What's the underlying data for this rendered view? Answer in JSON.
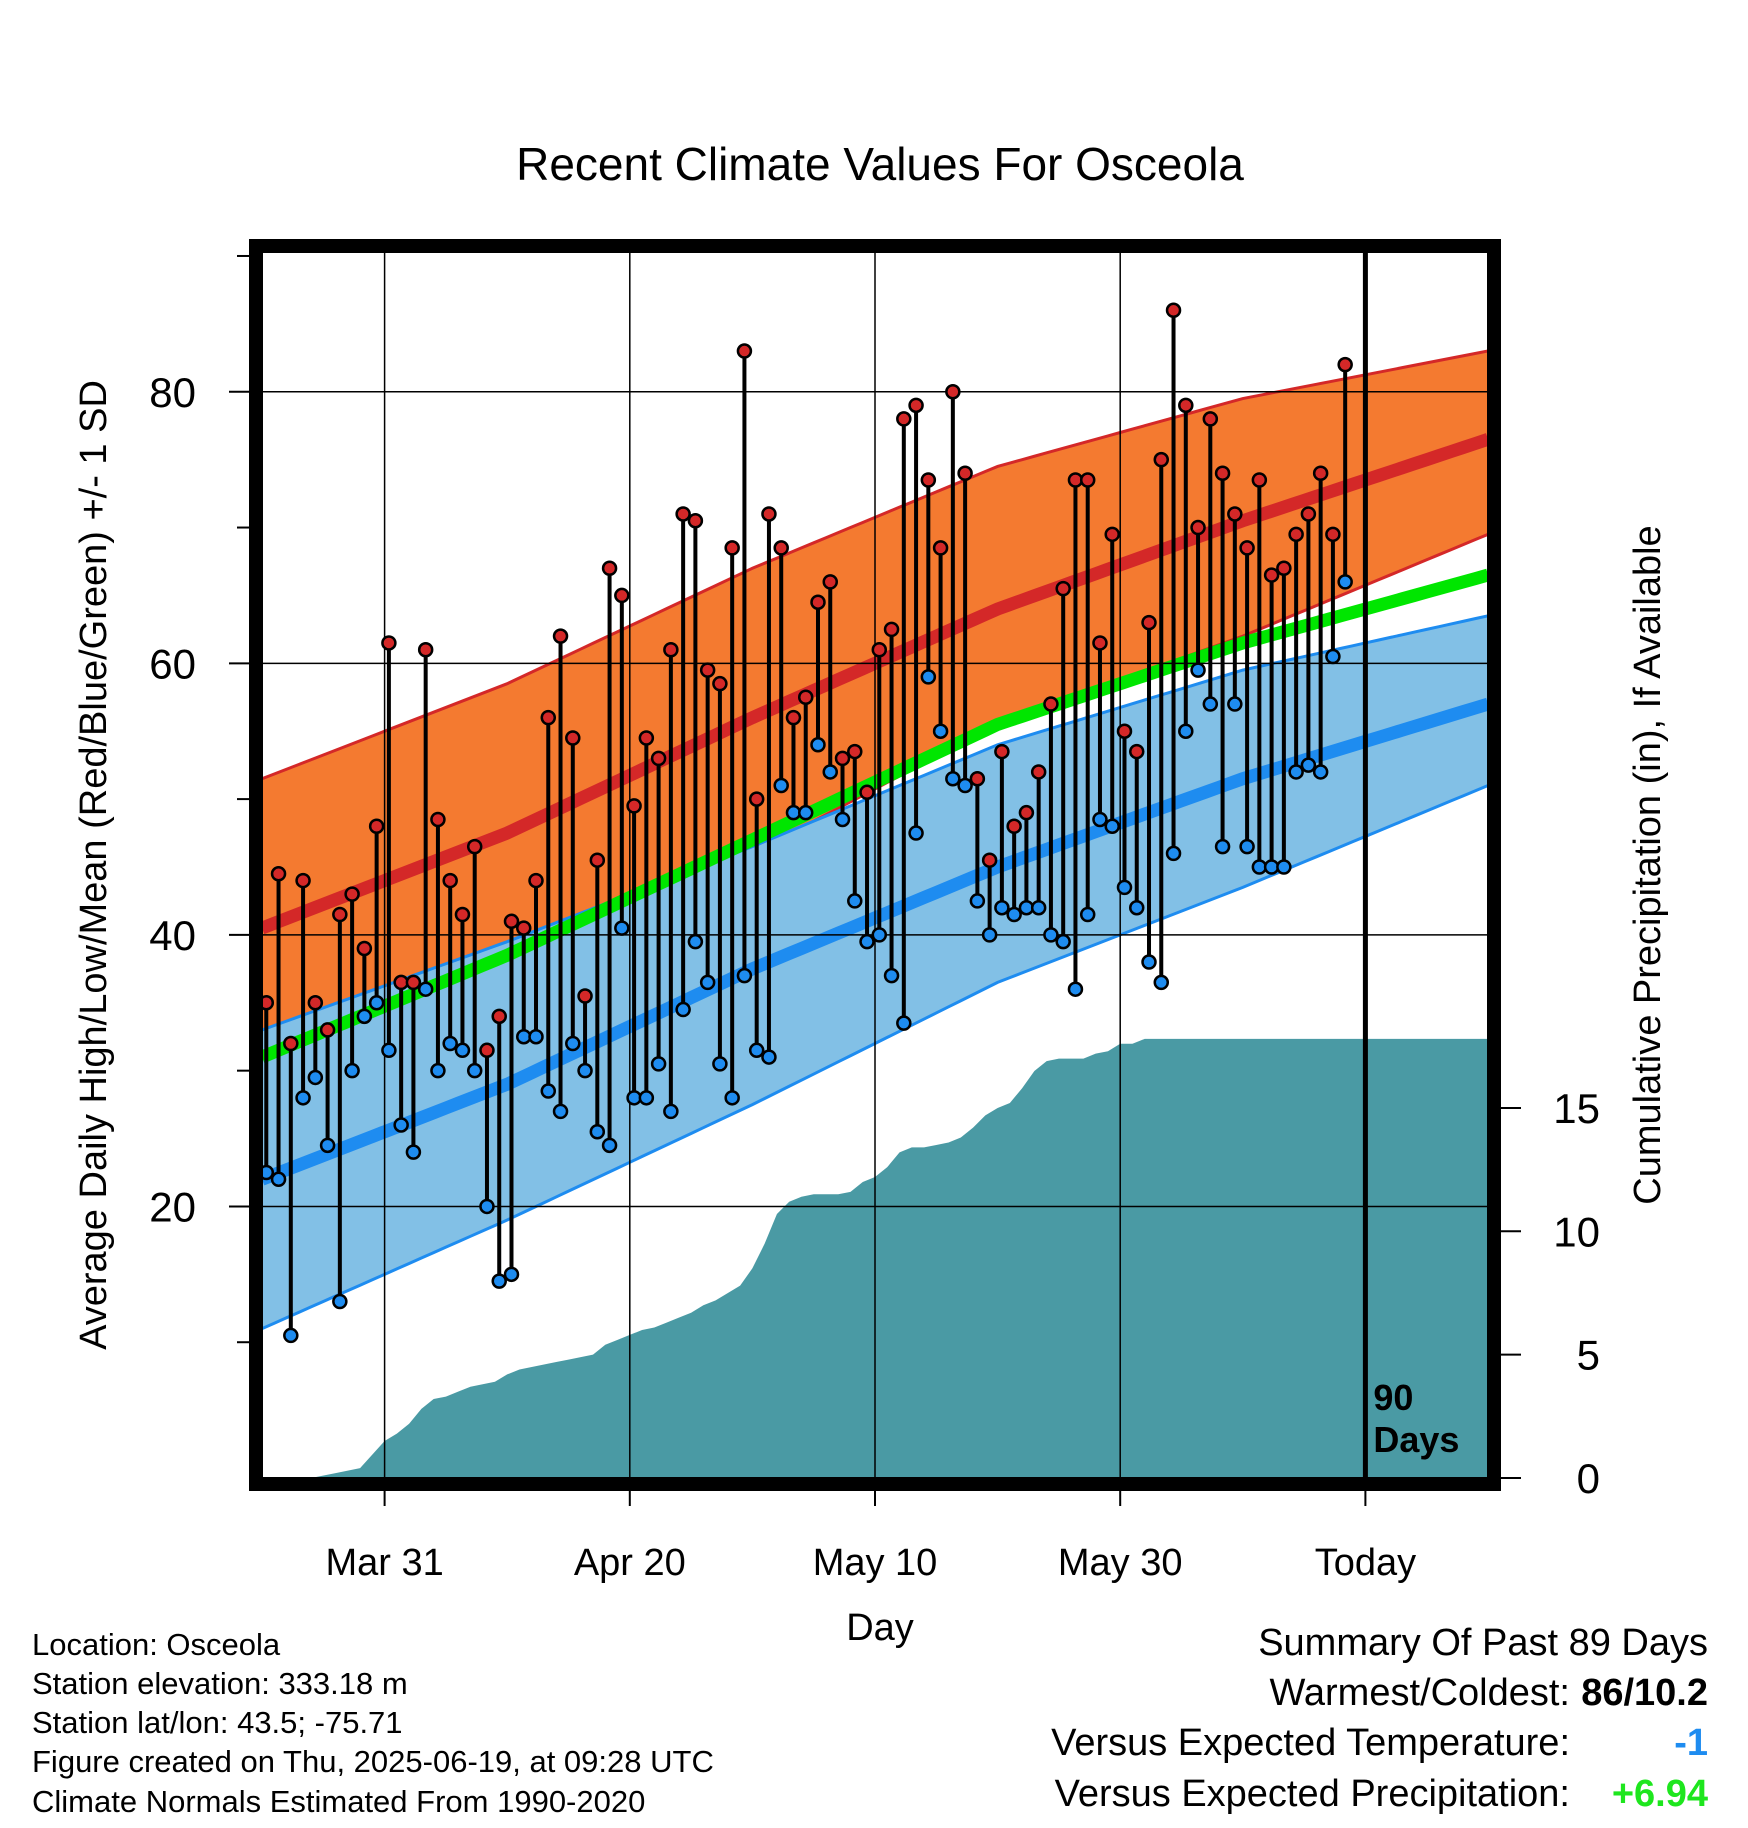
{
  "title": "Recent Climate Values For Osceola",
  "chart_data": {
    "type": "line",
    "title": "Recent Climate Values For Osceola",
    "xlabel": "Day",
    "ylabel": "Average Daily High/Low/Mean (Red/Blue/Green) +/- 1 SD",
    "y2label": "Cumulative Precipitation (in), If Available",
    "x_range_days": [
      0,
      100
    ],
    "ylim": [
      0,
      90
    ],
    "y_ticks": [
      20,
      40,
      60,
      80
    ],
    "y2lim": [
      0,
      18
    ],
    "y2_ticks": [
      0,
      5,
      10,
      15
    ],
    "x_tick_labels": [
      {
        "day": 10,
        "label": "Mar 31"
      },
      {
        "day": 30,
        "label": "Apr 20"
      },
      {
        "day": 50,
        "label": "May 10"
      },
      {
        "day": 70,
        "label": "May 30"
      },
      {
        "day": 90,
        "label": "Today"
      }
    ],
    "today_marker": {
      "day": 90,
      "label_lines": [
        "90",
        "Days"
      ]
    },
    "grid": true,
    "colors": {
      "high_band": "#f47a30",
      "high_line": "#d42828",
      "mean_line": "#00e600",
      "low_band": "#82c0e6",
      "low_line": "#1e8cf0",
      "precip": "#4a9aa4",
      "high_dot": "#d42828",
      "low_dot": "#1e8cf0"
    },
    "normals": {
      "days": [
        0,
        20,
        40,
        60,
        80,
        100
      ],
      "high_mean": [
        40.5,
        47.5,
        56.0,
        64.0,
        70.5,
        76.5
      ],
      "high_upper": [
        51.5,
        58.5,
        67.0,
        74.5,
        79.5,
        83.0
      ],
      "high_lower": [
        30.5,
        38.0,
        46.0,
        55.5,
        62.0,
        69.5
      ],
      "mean": [
        31.0,
        38.5,
        47.0,
        55.5,
        61.5,
        66.5
      ],
      "low_mean": [
        22.0,
        29.0,
        37.5,
        45.0,
        51.5,
        57.0
      ],
      "low_upper": [
        33.0,
        39.5,
        46.5,
        54.0,
        59.5,
        63.5
      ],
      "low_lower": [
        11.0,
        19.0,
        27.5,
        36.5,
        43.5,
        51.0
      ]
    },
    "series": [
      {
        "name": "Daily High",
        "values": [
          35,
          44.5,
          32,
          44,
          35,
          33,
          41.5,
          43,
          39,
          48,
          61.5,
          36.5,
          36.5,
          61,
          48.5,
          44,
          41.5,
          46.5,
          31.5,
          34,
          41,
          40.5,
          44,
          56,
          62,
          54.5,
          35.5,
          45.5,
          67,
          65,
          49.5,
          54.5,
          53,
          61,
          71,
          70.5,
          59.5,
          58.5,
          68.5,
          83,
          50,
          71,
          68.5,
          56,
          57.5,
          64.5,
          66,
          53,
          53.5,
          50.5,
          61,
          62.5,
          78,
          79,
          73.5,
          68.5,
          80,
          74,
          51.5,
          45.5,
          53.5,
          48,
          49,
          52,
          57,
          65.5,
          73.5,
          73.5,
          61.5,
          69.5,
          55,
          53.5,
          63,
          75,
          86,
          79,
          70,
          78,
          74,
          71,
          68.5,
          73.5,
          66.5,
          67,
          69.5,
          71,
          74,
          69.5,
          82
        ]
      },
      {
        "name": "Daily Low",
        "values": [
          22.5,
          22,
          10.5,
          28,
          29.5,
          24.5,
          13,
          30,
          34,
          35,
          31.5,
          26,
          24,
          36,
          30,
          32,
          31.5,
          30,
          20,
          14.5,
          15,
          32.5,
          32.5,
          28.5,
          27,
          32,
          30,
          25.5,
          24.5,
          40.5,
          28,
          28,
          30.5,
          27,
          34.5,
          39.5,
          36.5,
          30.5,
          28,
          37,
          31.5,
          31,
          51,
          49,
          49,
          54,
          52,
          48.5,
          42.5,
          39.5,
          40,
          37,
          33.5,
          47.5,
          59,
          55,
          51.5,
          51,
          42.5,
          40,
          42,
          41.5,
          42,
          42,
          40,
          39.5,
          36,
          41.5,
          48.5,
          48,
          43.5,
          42,
          38,
          36.5,
          46,
          55,
          59.5,
          57,
          46.5,
          57,
          46.5,
          45,
          45,
          45,
          52,
          52.5,
          52,
          60.5,
          66
        ]
      }
    ],
    "precipitation_cumulative": {
      "days": [
        0,
        4,
        6,
        8,
        10,
        11,
        12,
        13,
        14,
        15,
        16,
        17,
        18,
        19,
        20,
        21,
        22,
        23,
        24,
        25,
        26,
        27,
        28,
        29,
        30,
        31,
        32,
        33,
        34,
        35,
        36,
        37,
        38,
        39,
        40,
        41,
        42,
        43,
        44,
        45,
        46,
        47,
        48,
        49,
        50,
        51,
        52,
        53,
        54,
        55,
        56,
        57,
        58,
        59,
        60,
        61,
        62,
        63,
        64,
        65,
        66,
        67,
        68,
        69,
        70,
        71,
        72,
        73,
        74,
        75,
        76,
        77,
        78,
        79,
        80,
        81,
        82,
        83,
        84,
        85,
        86,
        87,
        88,
        89,
        90,
        100
      ],
      "values": [
        0,
        0,
        0.2,
        0.4,
        1.5,
        1.8,
        2.2,
        2.8,
        3.2,
        3.3,
        3.5,
        3.7,
        3.8,
        3.9,
        4.2,
        4.4,
        4.5,
        4.6,
        4.7,
        4.8,
        4.9,
        5.0,
        5.4,
        5.6,
        5.8,
        6.0,
        6.1,
        6.3,
        6.5,
        6.7,
        7.0,
        7.2,
        7.5,
        7.8,
        8.5,
        9.5,
        10.7,
        11.2,
        11.4,
        11.5,
        11.5,
        11.5,
        11.6,
        12.0,
        12.2,
        12.6,
        13.2,
        13.4,
        13.4,
        13.5,
        13.6,
        13.8,
        14.2,
        14.7,
        15.0,
        15.2,
        15.8,
        16.5,
        16.9,
        17.0,
        17.0,
        17.0,
        17.2,
        17.3,
        17.6,
        17.6,
        17.8,
        17.8,
        17.8,
        17.8,
        17.8,
        17.8,
        17.8,
        17.8,
        17.8,
        17.8,
        17.8,
        17.8,
        17.8,
        17.8,
        17.8,
        17.8,
        17.8,
        17.8,
        17.8,
        17.8
      ]
    }
  },
  "info": {
    "location": "Location: Osceola",
    "elevation": "Station elevation: 333.18 m",
    "latlon": "Station lat/lon: 43.5; -75.71",
    "created": "Figure created on Thu, 2025-06-19, at 09:28 UTC",
    "normals": "Climate Normals Estimated From 1990-2020"
  },
  "summary": {
    "heading": "Summary Of Past 89 Days",
    "warm_cold_label": "Warmest/Coldest:",
    "warm_cold_value": "86/10.2",
    "temp_label": "Versus Expected Temperature:",
    "temp_value": "-1",
    "temp_color": "#1e8cf0",
    "precip_label": "Versus Expected Precipitation:",
    "precip_value": "+6.94",
    "precip_color": "#1ee61e"
  }
}
